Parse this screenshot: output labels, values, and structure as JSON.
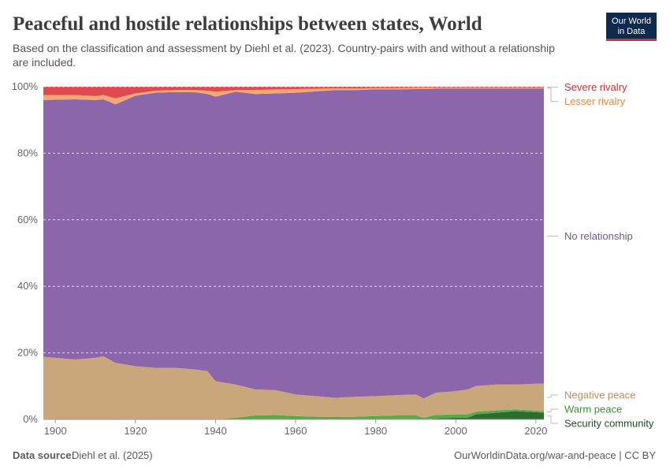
{
  "chart_data": {
    "type": "stacked-area",
    "title": "Peaceful and hostile relationships between states, World",
    "subtitle": [
      "Based on the classification and assessment by Diehl et al. (2023). Country-pairs with and without a relationship",
      "are included."
    ],
    "x": [
      1897,
      1905,
      1910,
      1912,
      1915,
      1920,
      1925,
      1930,
      1935,
      1938,
      1940,
      1945,
      1950,
      1955,
      1960,
      1965,
      1970,
      1975,
      1980,
      1985,
      1990,
      1992,
      1995,
      2000,
      2003,
      2005,
      2010,
      2015,
      2022
    ],
    "xlim": [
      1897,
      2022
    ],
    "xticks": [
      1900,
      1920,
      1940,
      1960,
      1980,
      2000,
      2020
    ],
    "ylim": [
      0,
      100
    ],
    "yticks": [
      {
        "value": 0,
        "label": "0%"
      },
      {
        "value": 20,
        "label": "20%"
      },
      {
        "value": 40,
        "label": "40%"
      },
      {
        "value": 60,
        "label": "60%"
      },
      {
        "value": 80,
        "label": "80%"
      },
      {
        "value": 100,
        "label": "100%"
      }
    ],
    "grid": true,
    "series": [
      {
        "name": "Security community",
        "color": "#2e6b30",
        "label_color": "#1f4f20",
        "values": [
          0,
          0,
          0,
          0,
          0,
          0,
          0,
          0,
          0,
          0,
          0,
          0,
          0,
          0,
          0,
          0,
          0,
          0,
          0,
          0,
          0,
          0,
          0.3,
          0.5,
          0.5,
          1.5,
          2,
          2.5,
          2
        ]
      },
      {
        "name": "Warm peace",
        "color": "#5ba84b",
        "label_color": "#3d8f33",
        "values": [
          0,
          0,
          0,
          0,
          0,
          0,
          0,
          0,
          0,
          0,
          0,
          0.5,
          1.2,
          1.3,
          1,
          0.8,
          0.7,
          0.8,
          1,
          1.2,
          1.2,
          0.5,
          1,
          1,
          1,
          0.8,
          0.7,
          0.5,
          0.5
        ]
      },
      {
        "name": "Negative peace",
        "color": "#c9a67b",
        "label_color": "#b88e5e",
        "values": [
          18.8,
          18,
          18.5,
          19,
          17,
          16,
          15.5,
          15.5,
          15,
          14.5,
          11.5,
          10,
          7.8,
          7.5,
          6.5,
          6.2,
          5.8,
          6,
          6,
          6.1,
          6.3,
          5.8,
          6.7,
          7,
          7.5,
          7.7,
          7.8,
          7.5,
          8.3
        ]
      },
      {
        "name": "No relationship",
        "color": "#8b66aa",
        "label_color": "#7a5299",
        "values": [
          77.2,
          78.2,
          77.5,
          77.2,
          77.7,
          81.3,
          82.7,
          82.9,
          83.3,
          83.3,
          85.5,
          88,
          88.8,
          89.2,
          90.7,
          91.6,
          92.5,
          92.2,
          92.2,
          91.9,
          91.8,
          93,
          91.4,
          90.9,
          90.4,
          89.4,
          88.9,
          88.9,
          88.6
        ]
      },
      {
        "name": "Lesser rivalry",
        "color": "#f3a771",
        "label_color": "#e08a46",
        "values": [
          1.5,
          1.3,
          1.2,
          1.3,
          1.8,
          0.7,
          0.6,
          0.6,
          0.7,
          1,
          1.5,
          0.5,
          1.2,
          1.2,
          1.1,
          0.8,
          0.5,
          0.5,
          0.4,
          0.4,
          0.4,
          0.4,
          0.3,
          0.3,
          0.3,
          0.3,
          0.3,
          0.3,
          0.3
        ]
      },
      {
        "name": "Severe rivalry",
        "color": "#de4a4f",
        "label_color": "#c8323c",
        "values": [
          2.5,
          2.5,
          2.8,
          2.5,
          3.5,
          2,
          1.2,
          1,
          1,
          1.2,
          1.5,
          1,
          1,
          0.8,
          0.7,
          0.6,
          0.5,
          0.5,
          0.4,
          0.4,
          0.3,
          0.3,
          0.3,
          0.3,
          0.3,
          0.3,
          0.3,
          0.3,
          0.3
        ]
      }
    ]
  },
  "logo": [
    "Our World",
    "in Data"
  ],
  "footer": {
    "source_label": "Data source:",
    "source": "Diehl et al. (2025)",
    "url": "OurWorldinData.org/war-and-peace | CC BY"
  }
}
